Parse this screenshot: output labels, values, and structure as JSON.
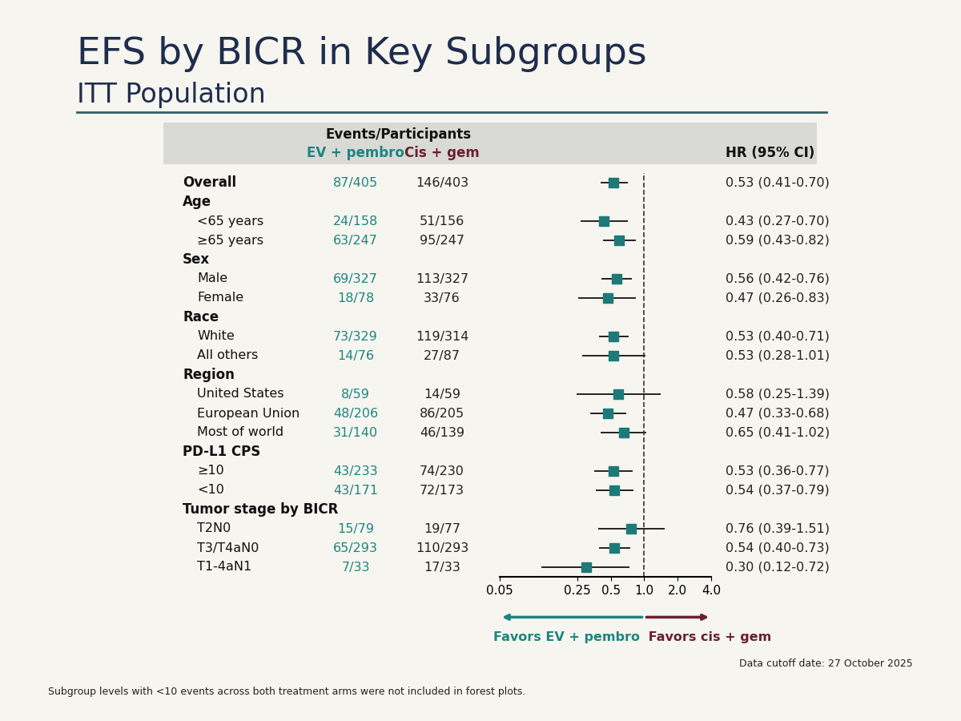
{
  "chart_data": {
    "type": "forest",
    "title": "EFS by BICR in Key Subgroups",
    "subtitle": "ITT Population",
    "column_header": "Events/Participants",
    "hr_header": "HR (95% CI)",
    "arms": [
      {
        "name": "EV + pembro",
        "color": "#1d8580"
      },
      {
        "name": "Cis + gem",
        "color": "#6b1f2e"
      }
    ],
    "color": "#1d7a78",
    "marker": "s",
    "reference": 1,
    "log": "x",
    "tick_labels": "x",
    "xlim": [
      0.05,
      4.0
    ],
    "xticks": [
      0.05,
      0.25,
      0.5,
      {
        "value": 1,
        "label": "1.0"
      },
      {
        "value": 2,
        "label": "2.0"
      },
      {
        "value": 4,
        "label": "4.0"
      }
    ],
    "favors": [
      "Favors EV + pembro",
      "Favors cis + gem"
    ],
    "footnote": "Subgroup levels with <10 events across both treatment arms were not included in forest plots.",
    "data_cutoff": "Data cutoff date: 27 October 2025",
    "overall": {
      "label": "Overall",
      "events": [
        "87/405",
        "146/403"
      ],
      "hr": 0.53,
      "ci": [
        0.41,
        0.7
      ],
      "hr_label": "0.53 (0.41-0.70)"
    },
    "subgroups": [
      {
        "name": "Age",
        "rows": [
          {
            "label": "<65 years",
            "events": [
              "24/158",
              "51/156"
            ],
            "hr": 0.43,
            "ci": [
              0.27,
              0.7
            ],
            "hr_label": "0.43 (0.27-0.70)"
          },
          {
            "label": "≥65 years",
            "events": [
              "63/247",
              "95/247"
            ],
            "hr": 0.59,
            "ci": [
              0.43,
              0.82
            ],
            "hr_label": "0.59 (0.43-0.82)"
          }
        ]
      },
      {
        "name": "Sex",
        "rows": [
          {
            "label": "Male",
            "events": [
              "69/327",
              "113/327"
            ],
            "hr": 0.56,
            "ci": [
              0.42,
              0.76
            ],
            "hr_label": "0.56 (0.42-0.76)"
          },
          {
            "label": "Female",
            "events": [
              "18/78",
              "33/76"
            ],
            "hr": 0.47,
            "ci": [
              0.26,
              0.83
            ],
            "hr_label": "0.47 (0.26-0.83)"
          }
        ]
      },
      {
        "name": "Race",
        "rows": [
          {
            "label": "White",
            "events": [
              "73/329",
              "119/314"
            ],
            "hr": 0.53,
            "ci": [
              0.4,
              0.71
            ],
            "hr_label": "0.53 (0.40-0.71)"
          },
          {
            "label": "All others",
            "events": [
              "14/76",
              "27/87"
            ],
            "hr": 0.53,
            "ci": [
              0.28,
              1.01
            ],
            "hr_label": "0.53 (0.28-1.01)"
          }
        ]
      },
      {
        "name": "Region",
        "rows": [
          {
            "label": "United States",
            "events": [
              "8/59",
              "14/59"
            ],
            "hr": 0.58,
            "ci": [
              0.25,
              1.39
            ],
            "hr_label": "0.58 (0.25-1.39)"
          },
          {
            "label": "European Union",
            "events": [
              "48/206",
              "86/205"
            ],
            "hr": 0.47,
            "ci": [
              0.33,
              0.68
            ],
            "hr_label": "0.47 (0.33-0.68)"
          },
          {
            "label": "Most of world",
            "events": [
              "31/140",
              "46/139"
            ],
            "hr": 0.65,
            "ci": [
              0.41,
              1.02
            ],
            "hr_label": "0.65 (0.41-1.02)"
          }
        ]
      },
      {
        "name": "PD-L1 CPS",
        "rows": [
          {
            "label": "≥10",
            "events": [
              "43/233",
              "74/230"
            ],
            "hr": 0.53,
            "ci": [
              0.36,
              0.77
            ],
            "hr_label": "0.53 (0.36-0.77)"
          },
          {
            "label": "<10",
            "events": [
              "43/171",
              "72/173"
            ],
            "hr": 0.54,
            "ci": [
              0.37,
              0.79
            ],
            "hr_label": "0.54 (0.37-0.79)"
          }
        ]
      },
      {
        "name": "Tumor stage by BICR",
        "rows": [
          {
            "label": "T2N0",
            "events": [
              "15/79",
              "19/77"
            ],
            "hr": 0.76,
            "ci": [
              0.39,
              1.51
            ],
            "hr_label": "0.76 (0.39-1.51)"
          },
          {
            "label": "T3/T4aN0",
            "events": [
              "65/293",
              "110/293"
            ],
            "hr": 0.54,
            "ci": [
              0.4,
              0.73
            ],
            "hr_label": "0.54 (0.40-0.73)"
          },
          {
            "label": "T1-4aN1",
            "events": [
              "7/33",
              "17/33"
            ],
            "hr": 0.3,
            "ci": [
              0.12,
              0.72
            ],
            "hr_label": "0.30 (0.12-0.72)"
          }
        ]
      }
    ]
  }
}
